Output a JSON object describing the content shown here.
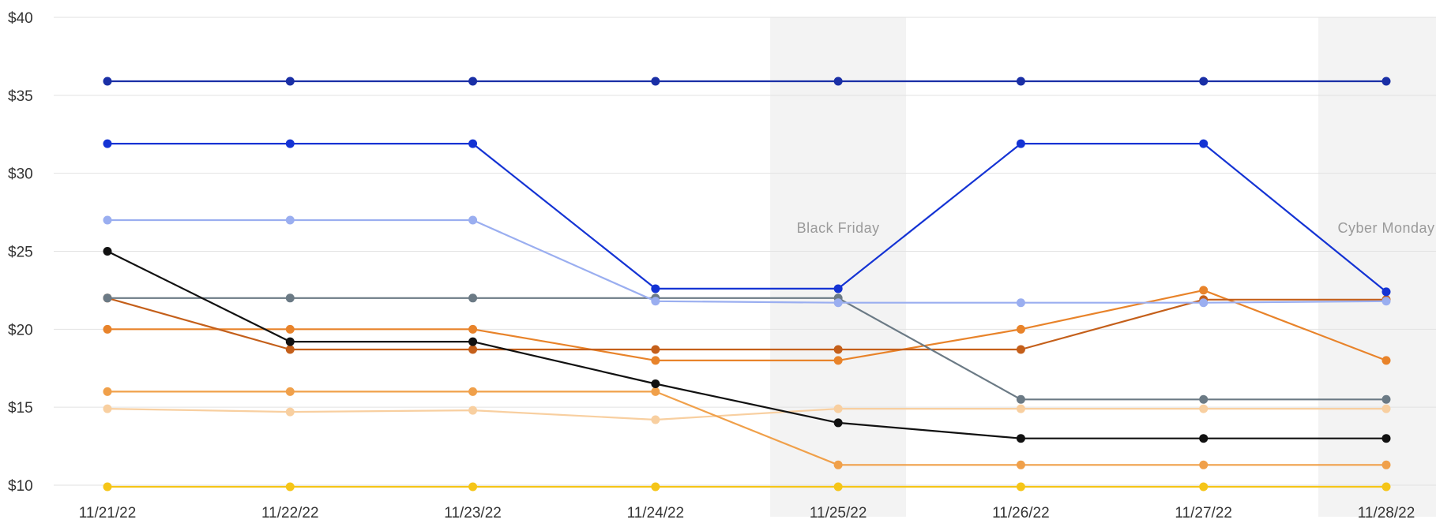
{
  "chart_data": {
    "type": "line",
    "title": "",
    "xlabel": "",
    "ylabel": "",
    "x": [
      "11/21/22",
      "11/22/22",
      "11/23/22",
      "11/24/22",
      "11/25/22",
      "11/26/22",
      "11/27/22",
      "11/28/22"
    ],
    "y_ticks": [
      "$40",
      "$35",
      "$30",
      "$25",
      "$20",
      "$15",
      "$10"
    ],
    "y_tick_values": [
      40,
      35,
      30,
      25,
      20,
      15,
      10
    ],
    "ylim": [
      10,
      40
    ],
    "grid": true,
    "legend": "none",
    "highlight_bands": [
      {
        "x": "11/25/22",
        "label": "Black Friday"
      },
      {
        "x": "11/28/22",
        "label": "Cyber Monday"
      }
    ],
    "series": [
      {
        "color": "#1a2fa6",
        "values": [
          35.9,
          35.9,
          35.9,
          35.9,
          35.9,
          35.9,
          35.9,
          35.9
        ]
      },
      {
        "color": "#1433d4",
        "values": [
          31.9,
          31.9,
          31.9,
          22.6,
          22.6,
          31.9,
          31.9,
          22.4
        ]
      },
      {
        "color": "#9aaef0",
        "values": [
          27.0,
          27.0,
          27.0,
          21.8,
          21.7,
          21.7,
          21.7,
          21.8
        ]
      },
      {
        "color": "#111111",
        "values": [
          25.0,
          19.2,
          19.2,
          16.5,
          14.0,
          13.0,
          13.0,
          13.0
        ]
      },
      {
        "color": "#6b7a85",
        "values": [
          22.0,
          22.0,
          22.0,
          22.0,
          22.0,
          15.5,
          15.5,
          15.5
        ]
      },
      {
        "color": "#c45f1a",
        "values": [
          22.0,
          18.7,
          18.7,
          18.7,
          18.7,
          18.7,
          21.9,
          21.9
        ]
      },
      {
        "color": "#e8832a",
        "values": [
          20.0,
          20.0,
          20.0,
          18.0,
          18.0,
          20.0,
          22.5,
          18.0
        ]
      },
      {
        "color": "#f0a04a",
        "values": [
          16.0,
          16.0,
          16.0,
          16.0,
          11.3,
          11.3,
          11.3,
          11.3
        ]
      },
      {
        "color": "#f8cfa0",
        "values": [
          14.9,
          14.7,
          14.8,
          14.2,
          14.9,
          14.9,
          14.9,
          14.9
        ]
      },
      {
        "color": "#f5c518",
        "values": [
          9.9,
          9.9,
          9.9,
          9.9,
          9.9,
          9.9,
          9.9,
          9.9
        ]
      }
    ]
  }
}
